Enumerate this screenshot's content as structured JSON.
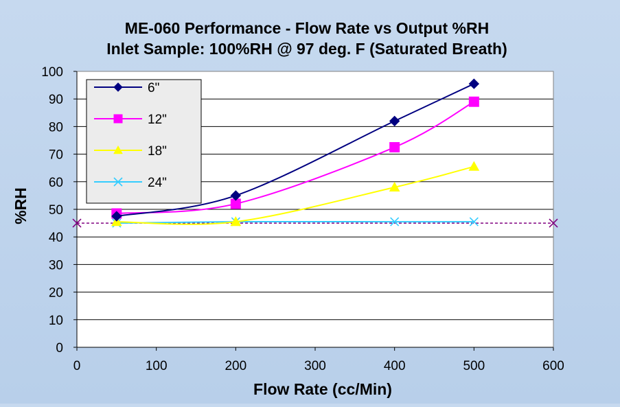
{
  "chart_data": {
    "type": "line",
    "title": "ME-060 Performance - Flow Rate vs Output %RH",
    "subtitle": "Inlet Sample: 100%RH @ 97 deg. F (Saturated Breath)",
    "xlabel": "Flow Rate (cc/Min)",
    "ylabel": "%RH",
    "xlim": [
      0,
      600
    ],
    "ylim": [
      0,
      100
    ],
    "xticks": [
      0,
      100,
      200,
      300,
      400,
      500,
      600
    ],
    "yticks": [
      0,
      10,
      20,
      30,
      40,
      50,
      60,
      70,
      80,
      90,
      100
    ],
    "grid": true,
    "legend_position": "top-left",
    "series": [
      {
        "name": "6\"",
        "color": "#000080",
        "marker": "diamond",
        "x": [
          50,
          200,
          400,
          500
        ],
        "y": [
          47.5,
          55,
          82,
          95.5
        ]
      },
      {
        "name": "12\"",
        "color": "#ff00ff",
        "marker": "square",
        "x": [
          50,
          200,
          400,
          500
        ],
        "y": [
          48.5,
          52,
          72.5,
          89
        ]
      },
      {
        "name": "18\"",
        "color": "#ffff00",
        "marker": "triangle",
        "x": [
          50,
          200,
          400,
          500
        ],
        "y": [
          45.5,
          45.5,
          58,
          65.5
        ]
      },
      {
        "name": "24\"",
        "color": "#33ccff",
        "marker": "x",
        "x": [
          50,
          200,
          400,
          500
        ],
        "y": [
          45,
          45.5,
          45.5,
          45.5
        ]
      }
    ],
    "reference_line": {
      "color": "#800080",
      "marker": "x",
      "style": "dashed",
      "x": [
        0,
        600
      ],
      "y": [
        45,
        45
      ]
    }
  }
}
